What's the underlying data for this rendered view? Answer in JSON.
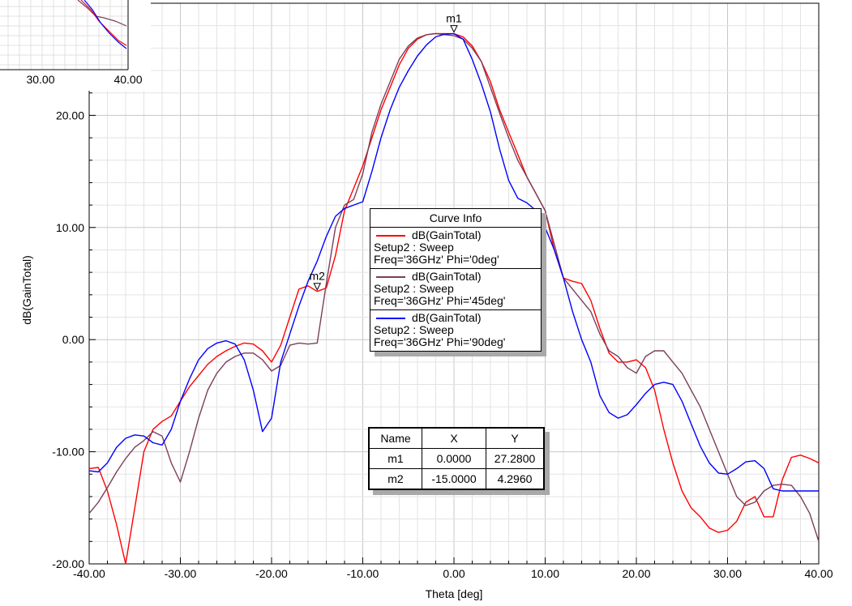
{
  "chart_data": {
    "type": "line",
    "xlabel": "Theta [deg]",
    "ylabel": "dB(GainTotal)",
    "xlim": [
      -40,
      40
    ],
    "ylim": [
      -20,
      30
    ],
    "x_ticks": [
      "-40.00",
      "-30.00",
      "-20.00",
      "-10.00",
      "0.00",
      "10.00",
      "20.00",
      "30.00",
      "40.00"
    ],
    "y_ticks": [
      "-20.00",
      "-10.00",
      "0.00",
      "10.00",
      "20.00"
    ],
    "grid": true,
    "series": [
      {
        "name": "dB(GainTotal)",
        "setup": "Setup2 : Sweep",
        "params": "Freq='36GHz' Phi='0deg'",
        "color": "#ff0000",
        "x": [
          -40,
          -39,
          -38,
          -37,
          -36,
          -35,
          -34,
          -33,
          -32,
          -31,
          -30,
          -29,
          -28,
          -27,
          -26,
          -25,
          -24,
          -23,
          -22,
          -21,
          -20,
          -19,
          -18,
          -17,
          -16,
          -15,
          -14,
          -13,
          -12,
          -11,
          -10,
          -9,
          -8,
          -7,
          -6,
          -5,
          -4,
          -3,
          -2,
          -1,
          0,
          1,
          2,
          3,
          4,
          5,
          6,
          7,
          8,
          9,
          10,
          11,
          12,
          13,
          14,
          15,
          16,
          17,
          18,
          19,
          20,
          21,
          22,
          23,
          24,
          25,
          26,
          27,
          28,
          29,
          30,
          31,
          32,
          33,
          34,
          35,
          36,
          37,
          38,
          39,
          40
        ],
        "y": [
          -11.5,
          -11.4,
          -13.5,
          -16.5,
          -20,
          -15,
          -10,
          -8,
          -7.3,
          -6.8,
          -5.5,
          -4.2,
          -3.2,
          -2.2,
          -1.5,
          -1,
          -0.6,
          -0.3,
          -0.4,
          -1,
          -2,
          -0.5,
          2,
          4.5,
          4.8,
          4.3,
          4.6,
          7.5,
          11.5,
          13.5,
          15.5,
          18,
          20.5,
          22.5,
          24.5,
          26,
          26.8,
          27.2,
          27.3,
          27.28,
          27.28,
          27,
          26.2,
          24.8,
          23,
          20.5,
          18.5,
          16.5,
          14.5,
          13,
          11.5,
          8,
          5.5,
          5.2,
          5,
          3.5,
          1,
          -1.2,
          -2,
          -2,
          -1.8,
          -2.5,
          -4.5,
          -8,
          -11,
          -13.5,
          -15,
          -15.8,
          -16.8,
          -17.2,
          -17,
          -16.2,
          -14.5,
          -14,
          -15.8,
          -15.8,
          -12.5,
          -10.5,
          -10.3,
          -10.6,
          -11
        ]
      },
      {
        "name": "dB(GainTotal)",
        "setup": "Setup2 : Sweep",
        "params": "Freq='36GHz' Phi='45deg'",
        "color": "#7b3f5b",
        "x": [
          -40,
          -39,
          -38,
          -37,
          -36,
          -35,
          -34,
          -33,
          -32,
          -31,
          -30,
          -29,
          -28,
          -27,
          -26,
          -25,
          -24,
          -23,
          -22,
          -21,
          -20,
          -19,
          -18,
          -17,
          -16,
          -15,
          -14,
          -13,
          -12,
          -11,
          -10,
          -9,
          -8,
          -7,
          -6,
          -5,
          -4,
          -3,
          -2,
          -1,
          0,
          1,
          2,
          3,
          4,
          5,
          6,
          7,
          8,
          9,
          10,
          11,
          12,
          13,
          14,
          15,
          16,
          17,
          18,
          19,
          20,
          21,
          22,
          23,
          24,
          25,
          26,
          27,
          28,
          29,
          30,
          31,
          32,
          33,
          34,
          35,
          36,
          37,
          38,
          39,
          40
        ],
        "y": [
          -15.5,
          -14.5,
          -13.2,
          -11.8,
          -10.6,
          -9.6,
          -9,
          -8.2,
          -8.6,
          -11,
          -12.7,
          -10,
          -7,
          -4.5,
          -3,
          -2,
          -1.5,
          -1.2,
          -1.2,
          -1.8,
          -2.8,
          -2.3,
          -0.5,
          -0.3,
          -0.4,
          -0.3,
          5,
          10,
          12,
          12.5,
          14.8,
          18.5,
          21,
          23,
          25,
          26.2,
          26.9,
          27.2,
          27.3,
          27.2,
          27.1,
          26.8,
          26,
          24.8,
          22.5,
          20.2,
          18,
          16,
          14.5,
          13,
          11.5,
          8.5,
          5.5,
          4.5,
          3.5,
          2.5,
          0.5,
          -1,
          -1.5,
          -2.5,
          -3,
          -1.5,
          -1,
          -1,
          -2,
          -3,
          -4.5,
          -6,
          -8,
          -10,
          -12,
          -14,
          -14.8,
          -14.5,
          -13.5,
          -13,
          -12.9,
          -13,
          -14,
          -15.5,
          -18
        ]
      },
      {
        "name": "dB(GainTotal)",
        "setup": "Setup2 : Sweep",
        "params": "Freq='36GHz' Phi='90deg'",
        "color": "#0000ff",
        "x": [
          -40,
          -39,
          -38,
          -37,
          -36,
          -35,
          -34,
          -33,
          -32,
          -31,
          -30,
          -29,
          -28,
          -27,
          -26,
          -25,
          -24,
          -23,
          -22,
          -21,
          -20,
          -19,
          -18,
          -17,
          -16,
          -15,
          -14,
          -13,
          -12,
          -11,
          -10,
          -9,
          -8,
          -7,
          -6,
          -5,
          -4,
          -3,
          -2,
          -1,
          0,
          1,
          2,
          3,
          4,
          5,
          6,
          7,
          8,
          9,
          10,
          11,
          12,
          13,
          14,
          15,
          16,
          17,
          18,
          19,
          20,
          21,
          22,
          23,
          24,
          25,
          26,
          27,
          28,
          29,
          30,
          31,
          32,
          33,
          34,
          35,
          36,
          37,
          38,
          39,
          40
        ],
        "y": [
          -11.7,
          -11.8,
          -11,
          -9.6,
          -8.8,
          -8.5,
          -8.6,
          -9.2,
          -9.4,
          -8,
          -5.5,
          -3.5,
          -1.8,
          -0.8,
          -0.3,
          -0.1,
          -0.4,
          -1.8,
          -4.5,
          -8.2,
          -7,
          -2,
          0.5,
          3,
          5.2,
          7,
          9.2,
          11,
          11.7,
          12,
          12.3,
          15,
          18,
          20.5,
          22.5,
          24,
          25.3,
          26.3,
          27,
          27.25,
          27.28,
          26.8,
          25,
          22.8,
          20.3,
          17,
          14.2,
          12.6,
          12.2,
          11.5,
          10,
          8,
          5.5,
          2.5,
          0,
          -2,
          -5,
          -6.5,
          -7,
          -6.7,
          -5.8,
          -4.8,
          -4,
          -3.8,
          -4,
          -5.5,
          -7.5,
          -9.5,
          -11,
          -11.9,
          -12,
          -11.5,
          -10.9,
          -10.8,
          -11.5,
          -13.3,
          -13.5,
          -13.5,
          -13.5,
          -13.5,
          -13.5
        ]
      }
    ],
    "markers": [
      {
        "name": "m1",
        "x": 0.0,
        "y": 27.28
      },
      {
        "name": "m2",
        "x": -15.0,
        "y": 4.296
      }
    ]
  },
  "curve_info": {
    "title": "Curve Info",
    "entries": [
      {
        "name": "dB(GainTotal)",
        "setup": "Setup2 : Sweep",
        "params": "Freq='36GHz' Phi='0deg'"
      },
      {
        "name": "dB(GainTotal)",
        "setup": "Setup2 : Sweep",
        "params": "Freq='36GHz' Phi='45deg'"
      },
      {
        "name": "dB(GainTotal)",
        "setup": "Setup2 : Sweep",
        "params": "Freq='36GHz' Phi='90deg'"
      }
    ]
  },
  "marker_table": {
    "headers": [
      "Name",
      "X",
      "Y"
    ],
    "rows": [
      [
        "m1",
        "0.0000",
        "27.2800"
      ],
      [
        "m2",
        "-15.0000",
        "4.2960"
      ]
    ]
  },
  "inset": {
    "x_ticks": [
      "30.00",
      "40.00"
    ]
  }
}
